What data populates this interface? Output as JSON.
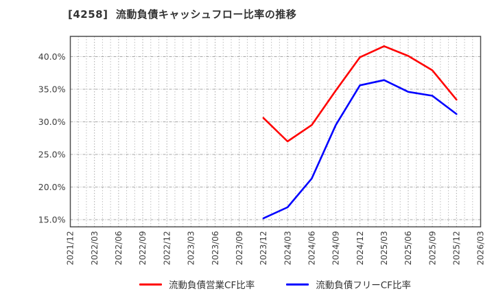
{
  "title": "[4258]  流動負債キャッシュフロー比率の推移",
  "chart_data": {
    "type": "line",
    "categories": [
      "2021/12",
      "2022/03",
      "2022/06",
      "2022/09",
      "2022/12",
      "2023/03",
      "2023/06",
      "2023/09",
      "2023/12",
      "2024/03",
      "2024/06",
      "2024/09",
      "2024/12",
      "2025/03",
      "2025/06",
      "2025/09",
      "2025/12",
      "2026/03"
    ],
    "series": [
      {
        "name": "流動負債営業CF比率",
        "color": "#ff0000",
        "values": [
          null,
          null,
          null,
          null,
          null,
          null,
          null,
          null,
          30.6,
          27.0,
          29.5,
          34.8,
          39.9,
          41.6,
          40.1,
          37.9,
          33.4,
          null
        ]
      },
      {
        "name": "流動負債フリーCF比率",
        "color": "#0000ff",
        "values": [
          null,
          null,
          null,
          null,
          null,
          null,
          null,
          null,
          15.2,
          16.9,
          21.3,
          29.5,
          35.6,
          36.4,
          34.6,
          34.0,
          31.2,
          null
        ]
      }
    ],
    "title": "[4258]  流動負債キャッシュフロー比率の推移",
    "xlabel": "",
    "ylabel": "",
    "ylim": [
      13.9,
      43.1
    ],
    "yticks": [
      15,
      20,
      25,
      30,
      35,
      40
    ],
    "ytick_suffix": ".0%",
    "grid": true,
    "minor_x_divisions_per_interval": 3,
    "legend_position": "bottom"
  },
  "colors": {
    "grid_minor": "#bdbdbd",
    "grid_major_v": "#a8a8a8",
    "grid_h": "#a6a6a6",
    "border": "#4d4d4d",
    "tick_label": "#3d3d3d",
    "title_text": "#333333"
  }
}
